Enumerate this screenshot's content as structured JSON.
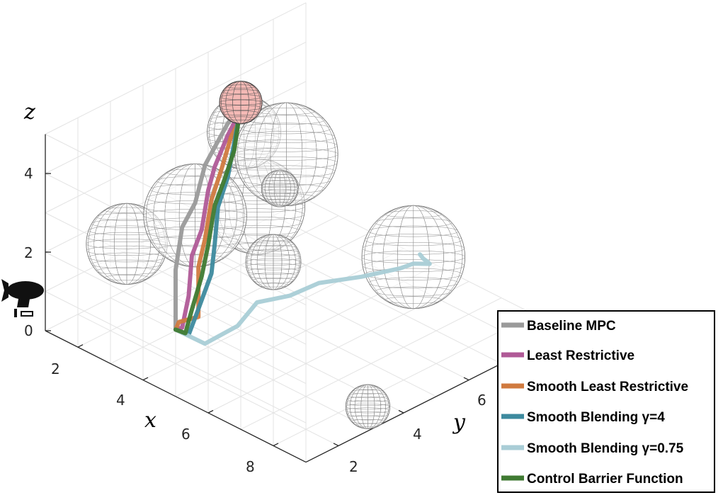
{
  "chart_data": {
    "type": "line",
    "dimensions": 3,
    "xlabel": "x",
    "ylabel": "y",
    "zlabel": "z",
    "xticks": [
      "2",
      "4",
      "6",
      "8"
    ],
    "yticks": [
      "2",
      "4",
      "6"
    ],
    "zticks": [
      "0",
      "2",
      "4"
    ],
    "xlim": [
      1,
      9
    ],
    "ylim": [
      1,
      8
    ],
    "zlim": [
      0,
      5
    ],
    "grid": true,
    "legend_position": "bottom-right",
    "start_marker_icon": "blimp-icon",
    "goal_marker": {
      "x": 1,
      "y": 7,
      "z": 3.3,
      "color": "#f4b9b5"
    },
    "obstacles": [
      {
        "x": 2.0,
        "y": 2.5,
        "z": 2.0,
        "r": 1.1
      },
      {
        "x": 2.5,
        "y": 6.0,
        "z": 1.7,
        "r": 1.3
      },
      {
        "x": 1.6,
        "y": 6.5,
        "z": 3.0,
        "r": 1.0
      },
      {
        "x": 2.2,
        "y": 7.2,
        "z": 2.4,
        "r": 1.4
      },
      {
        "x": 5.4,
        "y": 3.6,
        "z": 2.5,
        "r": 0.75
      },
      {
        "x": 2.3,
        "y": 4.3,
        "z": 2.1,
        "r": 1.4
      },
      {
        "x": 3.5,
        "y": 5.7,
        "z": 2.7,
        "r": 0.5
      },
      {
        "x": 6.8,
        "y": 6.5,
        "z": 2.0,
        "r": 1.4
      },
      {
        "x": 8.5,
        "y": 3.4,
        "z": 0.2,
        "r": 0.6
      }
    ],
    "series": [
      {
        "name": "Baseline MPC",
        "color": "#9a9a9a",
        "x": [
          5.0,
          4.6,
          3.9,
          3.3,
          3.0,
          2.6,
          2.2,
          1.8,
          1.4,
          1.0
        ],
        "y": [
          1.0,
          1.4,
          2.1,
          2.9,
          3.6,
          4.3,
          5.0,
          5.8,
          6.4,
          7.0
        ],
        "z": [
          1.7,
          2.0,
          2.3,
          2.8,
          3.0,
          3.5,
          3.5,
          3.6,
          3.4,
          3.3
        ]
      },
      {
        "name": "Least Restrictive",
        "color": "#b05a97",
        "x": [
          5.0,
          4.8,
          4.3,
          3.6,
          3.2,
          2.7,
          2.2,
          1.8,
          1.4,
          1.0
        ],
        "y": [
          1.0,
          1.4,
          2.1,
          2.9,
          3.6,
          4.3,
          5.0,
          5.8,
          6.4,
          7.0
        ],
        "z": [
          1.7,
          1.5,
          1.8,
          2.2,
          2.4,
          2.9,
          3.0,
          3.3,
          3.2,
          3.3
        ]
      },
      {
        "name": "Smooth Least Restrictive",
        "color": "#d07a3f",
        "x": [
          5.0,
          4.7,
          4.6,
          3.8,
          3.3,
          2.8,
          2.4,
          1.9,
          1.5,
          1.0
        ],
        "y": [
          1.0,
          1.4,
          2.1,
          2.9,
          3.6,
          4.3,
          5.0,
          5.8,
          6.4,
          7.0
        ],
        "z": [
          1.7,
          1.6,
          1.4,
          2.0,
          2.2,
          2.7,
          3.0,
          3.3,
          3.2,
          3.3
        ]
      },
      {
        "name": "Smooth Blending  γ=4",
        "color": "#3d8a9e",
        "x": [
          5.0,
          5.0,
          4.6,
          4.2,
          3.6,
          3.0,
          2.6,
          2.0,
          1.5,
          1.0
        ],
        "y": [
          1.0,
          1.4,
          2.1,
          2.9,
          3.6,
          4.3,
          5.0,
          5.8,
          6.4,
          7.0
        ],
        "z": [
          1.7,
          1.4,
          1.6,
          2.0,
          2.2,
          2.6,
          2.9,
          3.2,
          3.2,
          3.3
        ]
      },
      {
        "name": "Smooth Blending  γ=0.75",
        "color": "#a9cdd6",
        "x": [
          5.0,
          5.4,
          5.6,
          5.3,
          5.6,
          5.9,
          6.6,
          7.3,
          7.0,
          6.9,
          6.4,
          5.8,
          5.5
        ],
        "y": [
          1.0,
          1.5,
          2.3,
          3.2,
          3.9,
          4.5,
          5.1,
          5.6,
          6.3,
          6.9,
          7.3,
          7.8,
          8.0
        ],
        "z": [
          1.7,
          1.3,
          1.5,
          1.6,
          1.6,
          1.8,
          2.0,
          2.3,
          2.0,
          1.7,
          1.4,
          1.0,
          0.9
        ]
      },
      {
        "name": "Control Barrier Function",
        "color": "#3f7a32",
        "x": [
          5.0,
          4.9,
          4.4,
          3.9,
          3.4,
          2.9,
          2.5,
          2.0,
          1.5,
          1.0
        ],
        "y": [
          1.0,
          1.4,
          2.1,
          2.9,
          3.6,
          4.3,
          5.0,
          5.8,
          6.4,
          7.0
        ],
        "z": [
          1.7,
          1.4,
          1.5,
          1.8,
          2.1,
          2.6,
          2.8,
          3.0,
          3.1,
          3.3
        ]
      }
    ]
  }
}
